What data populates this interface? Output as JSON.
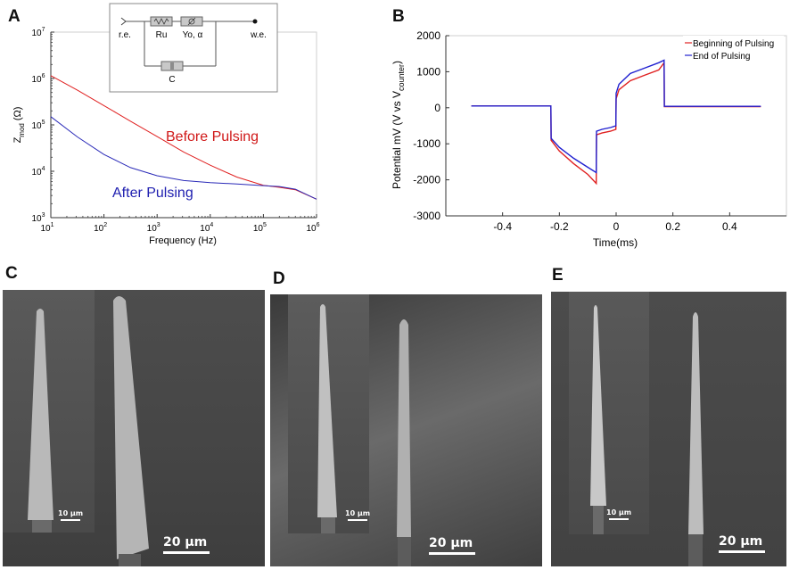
{
  "panels": {
    "A": {
      "letter": "A",
      "chart_data": {
        "type": "line",
        "xlabel": "Frequency (Hz)",
        "ylabel_main": "Z",
        "ylabel_sub": "mod",
        "ylabel_unit": "(Ω)",
        "xscale": "log",
        "yscale": "log",
        "xlim": [
          10,
          1000000
        ],
        "ylim": [
          1000,
          10000000
        ],
        "xticks": [
          10,
          100,
          1000,
          10000,
          100000,
          1000000
        ],
        "yticks": [
          1000,
          10000,
          100000,
          1000000,
          10000000
        ],
        "xtick_labels": [
          "10",
          "10",
          "10",
          "10",
          "10",
          "10"
        ],
        "xtick_exps": [
          "1",
          "2",
          "3",
          "4",
          "5",
          "6"
        ],
        "ytick_labels": [
          "10",
          "10",
          "10",
          "10",
          "10"
        ],
        "ytick_exps": [
          "3",
          "4",
          "5",
          "6",
          "7"
        ],
        "series": [
          {
            "name": "Before Pulsing",
            "color": "#e02020",
            "x": [
              10,
              31.6,
              100,
              316,
              1000,
              3160,
              10000,
              31600,
              100000,
              200000,
              400000,
              1000000
            ],
            "y": [
              1150000,
              560000,
              260000,
              120000,
              56000,
              26000,
              13500,
              7500,
              5000,
              4500,
              4000,
              2500
            ]
          },
          {
            "name": "After Pulsing",
            "color": "#2a2ab8",
            "x": [
              10,
              31.6,
              100,
              316,
              1000,
              3160,
              10000,
              31600,
              100000,
              200000,
              400000,
              1000000
            ],
            "y": [
              150000,
              55000,
              23000,
              12000,
              8000,
              6300,
              5700,
              5300,
              4900,
              4700,
              4100,
              2500
            ]
          }
        ],
        "annotations": [
          "Before Pulsing",
          "After Pulsing"
        ],
        "grid": false
      },
      "circuit": {
        "labels": [
          "r.e.",
          "Ru",
          "Yo, α",
          "w.e.",
          "C"
        ]
      }
    },
    "B": {
      "letter": "B",
      "chart_data": {
        "type": "line",
        "xlabel": "Time(ms)",
        "ylabel_prefix": "Potential mV (V vs V",
        "ylabel_sub": "counter",
        "ylabel_suffix": ")",
        "xlim": [
          -0.6,
          0.6
        ],
        "ylim": [
          -3000,
          2000
        ],
        "xticks": [
          -0.4,
          -0.2,
          0,
          0.2,
          0.4
        ],
        "xtick_labels": [
          "-0.4",
          "-0.2",
          "0",
          "0.2",
          "0.4"
        ],
        "yticks": [
          -3000,
          -2000,
          -1000,
          0,
          1000,
          2000
        ],
        "ytick_labels": [
          "-3000",
          "-2000",
          "-1000",
          "0",
          "1000",
          "2000"
        ],
        "legend_position": "top-right",
        "series": [
          {
            "name": "Beginning of Pulsing",
            "color": "#e02020",
            "x": [
              -0.51,
              -0.23,
              -0.229,
              -0.2,
              -0.15,
              -0.1,
              -0.07,
              -0.069,
              -0.05,
              -0.02,
              -0.001,
              0.0,
              0.01,
              0.05,
              0.1,
              0.15,
              0.169,
              0.17,
              0.51
            ],
            "y": [
              50,
              50,
              -900,
              -1200,
              -1550,
              -1850,
              -2100,
              -750,
              -700,
              -650,
              -600,
              250,
              500,
              750,
              900,
              1050,
              1250,
              30,
              30
            ]
          },
          {
            "name": "End of Pulsing",
            "color": "#2020d0",
            "x": [
              -0.51,
              -0.23,
              -0.229,
              -0.2,
              -0.15,
              -0.1,
              -0.07,
              -0.069,
              -0.05,
              -0.02,
              -0.001,
              0.0,
              0.01,
              0.05,
              0.1,
              0.15,
              0.169,
              0.17,
              0.51
            ],
            "y": [
              50,
              50,
              -850,
              -1100,
              -1400,
              -1650,
              -1800,
              -650,
              -600,
              -550,
              -500,
              400,
              650,
              950,
              1100,
              1250,
              1320,
              40,
              40
            ]
          }
        ],
        "grid": false
      }
    },
    "C": {
      "letter": "C",
      "scale_small": "10 µm",
      "scale_large": "20 µm"
    },
    "D": {
      "letter": "D",
      "scale_small": "10 µm",
      "scale_large": "20 µm"
    },
    "E": {
      "letter": "E",
      "scale_small": "10 µm",
      "scale_large": "20 µm"
    }
  }
}
